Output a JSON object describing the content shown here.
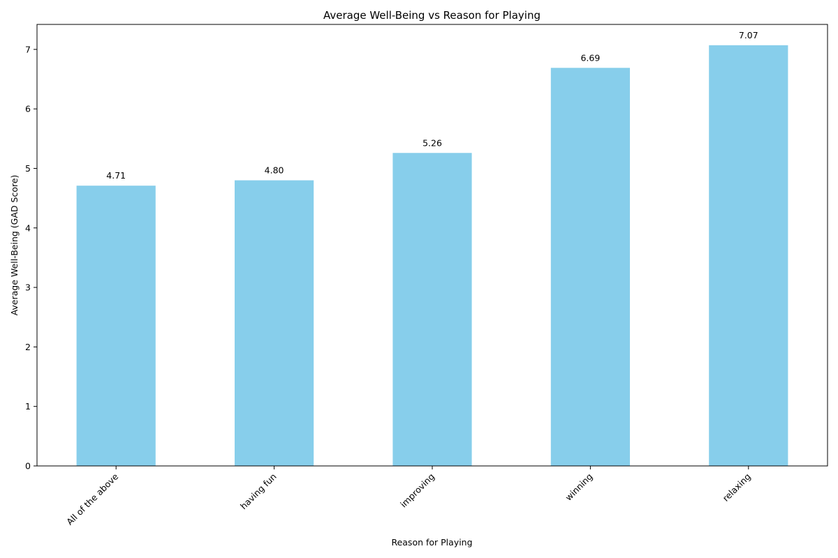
{
  "chart_data": {
    "type": "bar",
    "title": "Average Well-Being vs Reason for Playing",
    "xlabel": "Reason for Playing",
    "ylabel": "Average Well-Being (GAD Score)",
    "categories": [
      "All of the above",
      "having fun",
      "improving",
      "winning",
      "relaxing"
    ],
    "values": [
      4.71,
      4.8,
      5.26,
      6.69,
      7.07
    ],
    "value_labels": [
      "4.71",
      "4.80",
      "5.26",
      "6.69",
      "7.07"
    ],
    "yticks": [
      "0",
      "1",
      "2",
      "3",
      "4",
      "5",
      "6",
      "7"
    ],
    "ylim": [
      0,
      7.42
    ],
    "grid": false,
    "bar_color": "#87ceeb"
  }
}
